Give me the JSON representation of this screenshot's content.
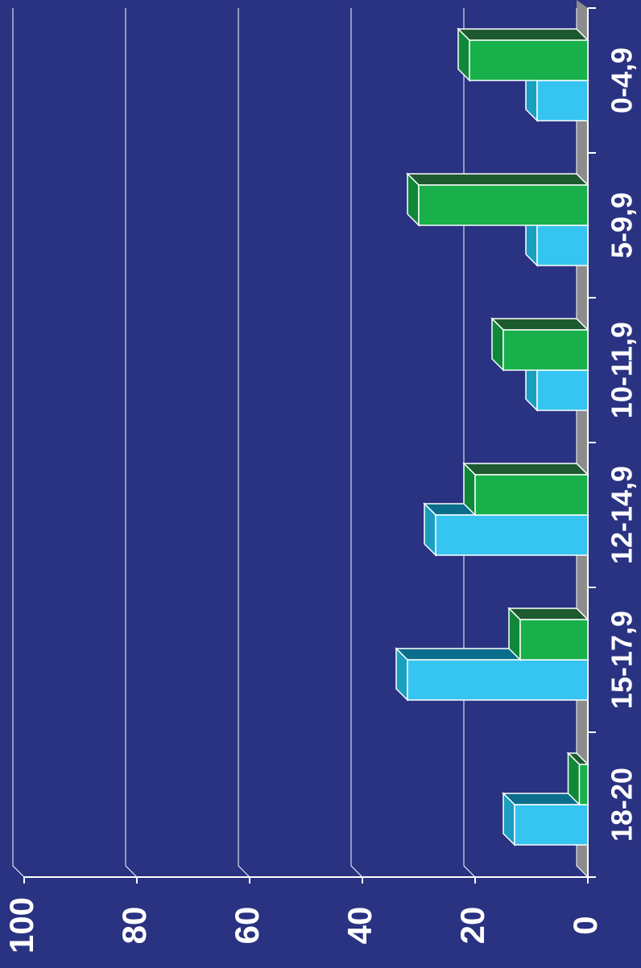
{
  "chart_data": {
    "type": "bar",
    "orientation": "horizontal",
    "three_d": true,
    "categories": [
      "18-20",
      "15-17,9",
      "12-14,9",
      "10-11,9",
      "5-9,9",
      "0-4,9"
    ],
    "series": [
      {
        "color": "#36c5f0",
        "values": [
          13,
          32,
          27,
          9,
          9,
          9
        ]
      },
      {
        "color": "#17b04a",
        "values": [
          1.5,
          12,
          20,
          15,
          30,
          21
        ]
      }
    ],
    "ylim": [
      0,
      100
    ],
    "yticks": [
      0,
      20,
      40,
      60,
      80,
      100
    ],
    "grid": true
  }
}
